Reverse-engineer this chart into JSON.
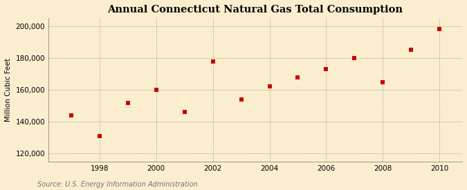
{
  "title": "Annual Connecticut Natural Gas Total Consumption",
  "ylabel": "Million Cubic Feet",
  "source": "Source: U.S. Energy Information Administration",
  "years": [
    1997,
    1998,
    1999,
    2000,
    2001,
    2002,
    2003,
    2004,
    2005,
    2006,
    2007,
    2008,
    2009,
    2010
  ],
  "values": [
    144000,
    131000,
    152000,
    160000,
    146000,
    178000,
    154000,
    162000,
    168000,
    173000,
    180000,
    165000,
    185000,
    198000
  ],
  "marker_color": "#cc0000",
  "marker": "s",
  "marker_size": 4,
  "bg_color": "#faeece",
  "plot_bg_color": "#faeece",
  "grid_color": "#aaaaaa",
  "ylim": [
    115000,
    205000
  ],
  "yticks": [
    120000,
    140000,
    160000,
    180000,
    200000
  ],
  "xticks": [
    1998,
    2000,
    2002,
    2004,
    2006,
    2008,
    2010
  ],
  "xlim": [
    1996.2,
    2010.8
  ],
  "title_fontsize": 10.5,
  "label_fontsize": 7.5,
  "tick_fontsize": 7.5,
  "source_fontsize": 7
}
